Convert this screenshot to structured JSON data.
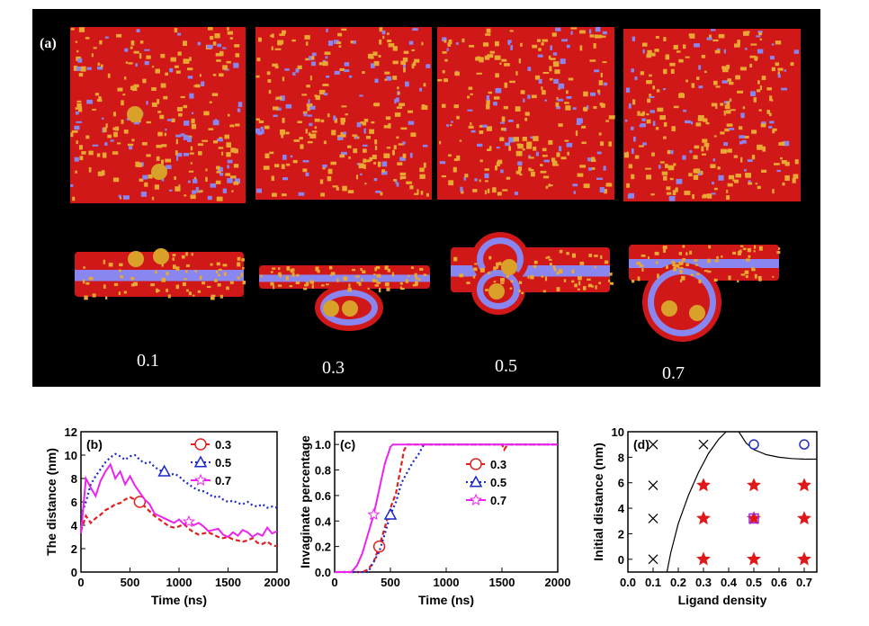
{
  "panel_a": {
    "label": "(a)",
    "ligand_densities": [
      "0.1",
      "0.3",
      "0.5",
      "0.7"
    ],
    "colors": {
      "background": "#000000",
      "membrane_red": "#d01818",
      "ligand_yellow": "#e8a832",
      "receptor_blue": "#8a86f0",
      "nanoparticle": "#d9a12a"
    }
  },
  "chart_data": [
    {
      "type": "line",
      "panel": "(b)",
      "xlabel": "Time (ns)",
      "ylabel": "The distance (nm)",
      "xlim": [
        0,
        2000
      ],
      "ylim": [
        0,
        12
      ],
      "xticks": [
        "0",
        "500",
        "1000",
        "1500",
        "2000"
      ],
      "yticks": [
        "0",
        "2",
        "4",
        "6",
        "8",
        "10",
        "12"
      ],
      "legend_position": "top-right",
      "series": [
        {
          "name": "0.3",
          "color": "#e02020",
          "marker": "circle",
          "style": "dashed",
          "x": [
            0,
            50,
            100,
            150,
            200,
            250,
            300,
            350,
            400,
            450,
            500,
            550,
            600,
            650,
            700,
            750,
            800,
            850,
            900,
            950,
            1000,
            1050,
            1100,
            1150,
            1200,
            1250,
            1300,
            1350,
            1400,
            1450,
            1500,
            1550,
            1600,
            1650,
            1700,
            1750,
            1800,
            1850,
            1900,
            1950,
            2000
          ],
          "values": [
            3.5,
            4.8,
            4.2,
            4.6,
            4.9,
            5.3,
            5.5,
            5.8,
            5.9,
            6.2,
            6.4,
            6.2,
            6.0,
            5.6,
            5.2,
            4.8,
            4.5,
            4.2,
            3.9,
            3.8,
            3.9,
            4.1,
            3.7,
            3.4,
            3.2,
            3.3,
            3.4,
            3.2,
            3.0,
            2.9,
            3.0,
            2.8,
            2.7,
            2.6,
            2.7,
            2.9,
            2.5,
            2.4,
            2.6,
            2.3,
            2.2
          ]
        },
        {
          "name": "0.5",
          "color": "#1a28c8",
          "marker": "triangle",
          "style": "dotted",
          "x": [
            0,
            50,
            100,
            150,
            200,
            250,
            300,
            350,
            400,
            450,
            500,
            550,
            600,
            650,
            700,
            750,
            800,
            850,
            900,
            950,
            1000,
            1050,
            1100,
            1150,
            1200,
            1250,
            1300,
            1350,
            1400,
            1450,
            1500,
            1550,
            1600,
            1650,
            1700,
            1750,
            1800,
            1850,
            1900,
            1950,
            2000
          ],
          "values": [
            4.8,
            6.0,
            7.5,
            8.2,
            8.8,
            9.4,
            9.8,
            10.1,
            9.9,
            9.6,
            9.9,
            10.0,
            9.6,
            9.3,
            9.4,
            9.0,
            8.7,
            8.6,
            8.3,
            8.4,
            8.2,
            7.8,
            7.5,
            7.2,
            7.0,
            6.9,
            6.7,
            6.4,
            6.5,
            6.2,
            6.0,
            6.1,
            5.9,
            5.8,
            6.0,
            5.7,
            5.6,
            5.8,
            5.5,
            5.6,
            5.5
          ]
        },
        {
          "name": "0.7",
          "color": "#ee22ee",
          "marker": "star",
          "style": "solid",
          "x": [
            0,
            50,
            100,
            150,
            200,
            250,
            300,
            350,
            400,
            450,
            500,
            550,
            600,
            650,
            700,
            750,
            800,
            850,
            900,
            950,
            1000,
            1050,
            1100,
            1150,
            1200,
            1250,
            1300,
            1350,
            1400,
            1450,
            1500,
            1550,
            1600,
            1650,
            1700,
            1750,
            1800,
            1850,
            1900,
            1950,
            2000
          ],
          "values": [
            3.3,
            8.0,
            7.2,
            6.5,
            7.8,
            8.6,
            9.2,
            8.0,
            8.6,
            7.5,
            8.2,
            7.4,
            6.8,
            6.2,
            5.8,
            5.0,
            4.8,
            4.6,
            4.4,
            4.2,
            4.5,
            4.1,
            4.3,
            4.0,
            4.2,
            3.9,
            3.5,
            3.6,
            3.7,
            3.2,
            3.0,
            3.4,
            3.1,
            3.6,
            3.4,
            3.0,
            3.3,
            3.1,
            3.8,
            3.3,
            3.5
          ]
        }
      ]
    },
    {
      "type": "line",
      "panel": "(c)",
      "xlabel": "Time (ns)",
      "ylabel": "Invaginate percentage",
      "xlim": [
        0,
        2000
      ],
      "ylim": [
        0,
        1.1
      ],
      "xticks": [
        "0",
        "500",
        "1000",
        "1500",
        "2000"
      ],
      "yticks": [
        "0.0",
        "0.2",
        "0.4",
        "0.6",
        "0.8",
        "1.0"
      ],
      "legend_position": "right",
      "series": [
        {
          "name": "0.3",
          "color": "#e02020",
          "marker": "circle",
          "style": "dashed",
          "x": [
            0,
            250,
            300,
            350,
            400,
            450,
            500,
            550,
            600,
            620,
            650,
            700,
            1500,
            1520,
            1550,
            2000
          ],
          "values": [
            0,
            0,
            0.02,
            0.08,
            0.2,
            0.35,
            0.5,
            0.62,
            0.85,
            0.95,
            1.0,
            1.0,
            1.0,
            0.96,
            1.0,
            1.0
          ]
        },
        {
          "name": "0.5",
          "color": "#1a28c8",
          "marker": "triangle",
          "style": "dotted",
          "x": [
            0,
            300,
            350,
            400,
            450,
            500,
            550,
            600,
            650,
            700,
            750,
            800,
            850,
            2000
          ],
          "values": [
            0,
            0,
            0.08,
            0.16,
            0.3,
            0.45,
            0.55,
            0.7,
            0.78,
            0.86,
            0.92,
            1.0,
            1.0,
            1.0
          ]
        },
        {
          "name": "0.7",
          "color": "#ee22ee",
          "marker": "star",
          "style": "solid",
          "x": [
            0,
            150,
            200,
            250,
            300,
            350,
            400,
            450,
            500,
            520,
            2000
          ],
          "values": [
            0,
            0,
            0.05,
            0.15,
            0.3,
            0.45,
            0.65,
            0.85,
            0.98,
            1.0,
            1.0
          ]
        }
      ]
    },
    {
      "type": "scatter",
      "panel": "(d)",
      "xlabel": "Ligand density",
      "ylabel": "Initial distance (nm)",
      "xlim": [
        0.0,
        0.75
      ],
      "ylim": [
        -1,
        10
      ],
      "xticks": [
        "0.0",
        "0.1",
        "0.2",
        "0.3",
        "0.4",
        "0.5",
        "0.6",
        "0.7"
      ],
      "yticks": [
        "0",
        "2",
        "4",
        "6",
        "8",
        "10"
      ],
      "series": [
        {
          "marker": "cross",
          "color": "#000000",
          "x": [
            0.1,
            0.1,
            0.1,
            0.1,
            0.3
          ],
          "values": [
            0,
            3.2,
            5.8,
            9,
            9
          ]
        },
        {
          "marker": "star",
          "color": "#e01818",
          "x": [
            0.3,
            0.3,
            0.3,
            0.5,
            0.5,
            0.5,
            0.7,
            0.7,
            0.7
          ],
          "values": [
            0,
            3.2,
            5.8,
            0,
            3.2,
            5.8,
            0,
            3.2,
            5.8
          ]
        },
        {
          "marker": "circle",
          "color": "#2030c0",
          "x": [
            0.5,
            0.7
          ],
          "values": [
            9,
            9
          ]
        },
        {
          "marker": "square",
          "color": "#9a2ae0",
          "x": [
            0.5
          ],
          "values": [
            3.2
          ]
        }
      ],
      "boundary_curves": [
        {
          "x": [
            0.155,
            0.17,
            0.2,
            0.24,
            0.28,
            0.32,
            0.36,
            0.39
          ],
          "values": [
            -1,
            0.5,
            2.8,
            5.0,
            6.8,
            8.3,
            9.4,
            10.0
          ]
        },
        {
          "x": [
            0.44,
            0.47,
            0.5,
            0.55,
            0.6,
            0.65,
            0.7,
            0.75
          ],
          "values": [
            10.0,
            9.1,
            8.6,
            8.2,
            8.0,
            7.9,
            7.85,
            7.85
          ]
        }
      ]
    }
  ]
}
